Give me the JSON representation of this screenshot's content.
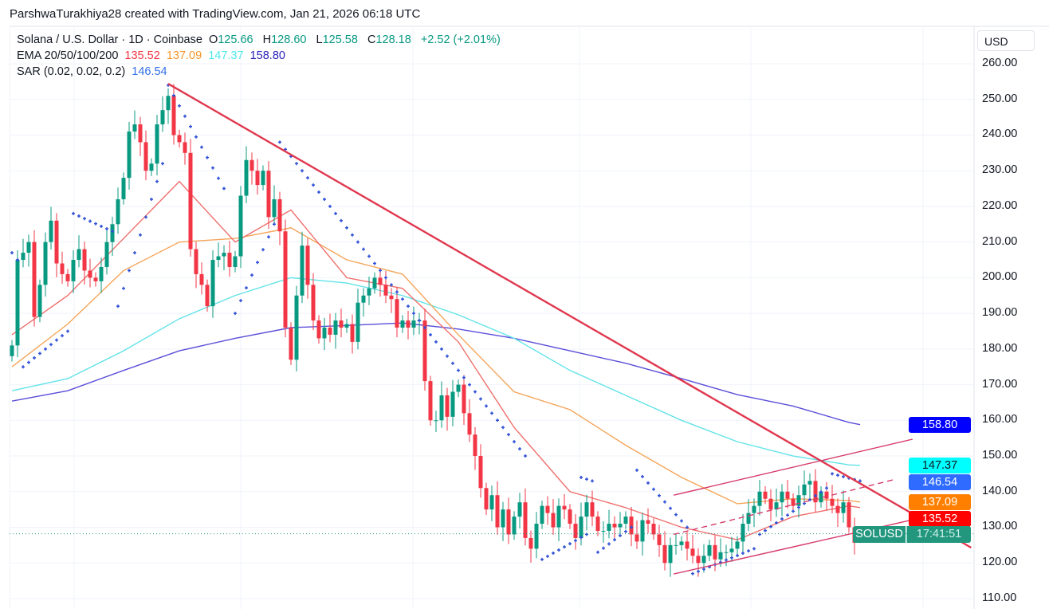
{
  "credit": "ParshwaTurakhiya28 created with TradingView.com, Jan 21, 2026 06:18 UTC",
  "legend": {
    "symbol": "Solana / U.S. Dollar · 1D · Coinbase",
    "o_label": "O",
    "o": "125.66",
    "h_label": "H",
    "h": "128.60",
    "l_label": "L",
    "l": "125.58",
    "c_label": "C",
    "c": "128.18",
    "change": "+2.52 (+2.01%)",
    "ema_label": "EMA 20/50/100/200",
    "ema20": "135.52",
    "ema50": "137.09",
    "ema100": "147.37",
    "ema200": "158.80",
    "sar_label": "SAR (0.02, 0.02, 0.2)",
    "sar": "146.54"
  },
  "price_axis": {
    "currency": "USD",
    "ticks": [
      "260.00",
      "250.00",
      "240.00",
      "230.00",
      "220.00",
      "210.00",
      "200.00",
      "190.00",
      "180.00",
      "170.00",
      "160.00",
      "150.00",
      "140.00",
      "130.00",
      "120.00",
      "110.00"
    ],
    "labels": [
      {
        "text": "158.80",
        "value": 158.8,
        "bg": "#0000ff",
        "fg": "#ffffff"
      },
      {
        "text": "147.37",
        "value": 147.37,
        "bg": "#00ffff",
        "fg": "#131722"
      },
      {
        "text": "146.54",
        "value": 146.54,
        "bg": "#2f6bff",
        "fg": "#ffffff"
      },
      {
        "text": "137.09",
        "value": 137.09,
        "bg": "#ff8000",
        "fg": "#ffffff"
      },
      {
        "text": "135.52",
        "value": 135.52,
        "bg": "#ff0000",
        "fg": "#ffffff"
      }
    ],
    "symbol_tag": "SOLUSD",
    "countdown": "17:41:51"
  },
  "colors": {
    "up": "#089981",
    "down": "#f23645",
    "ema20": "#ef6f6c",
    "ema50": "#f5a55a",
    "ema100": "#62e3e8",
    "ema200": "#5a4ed8",
    "sar": "#2f4fd6",
    "trendline": "#e0384f",
    "channel": "#d63a6a"
  },
  "chart_data": {
    "type": "candlestick",
    "ylim": [
      110,
      260
    ],
    "grid": true,
    "last": {
      "open": 125.66,
      "high": 128.6,
      "low": 125.58,
      "close": 128.18
    },
    "close": [
      181,
      205,
      207,
      210,
      189,
      198,
      210,
      216,
      204,
      201,
      199,
      205,
      208,
      202,
      200,
      199,
      203,
      210,
      215,
      222,
      228,
      241,
      243,
      238,
      230,
      232,
      243,
      247,
      251,
      240,
      238,
      235,
      208,
      201,
      198,
      192,
      205,
      206,
      207,
      203,
      206,
      223,
      233,
      230,
      226,
      230,
      217,
      222,
      213,
      186,
      177,
      195,
      209,
      198,
      188,
      183,
      186,
      184,
      188,
      186,
      187,
      182,
      193,
      195,
      197,
      200,
      198,
      195,
      194,
      186,
      188,
      186,
      188,
      188,
      171,
      160,
      160,
      167,
      161,
      168,
      170,
      162,
      156,
      150,
      141,
      135,
      139,
      130,
      135,
      128,
      133,
      137,
      127,
      124,
      131,
      136,
      134,
      130,
      136,
      135,
      131,
      127,
      133,
      137,
      133,
      129,
      129,
      131,
      130,
      131,
      133,
      128,
      126,
      132,
      131,
      128,
      125,
      120,
      125,
      125,
      126,
      124,
      122,
      120,
      122,
      125,
      121,
      123,
      123,
      124,
      126,
      131,
      134,
      136,
      140,
      138,
      135,
      137,
      140,
      138,
      136,
      139,
      142,
      143,
      137,
      140,
      138,
      136,
      134,
      137,
      130,
      125.66,
      128.18
    ],
    "ema": {
      "sample_every": 10,
      "ema20": [
        184,
        195,
        211,
        227,
        210,
        219,
        200,
        197,
        182,
        158,
        140,
        135.5,
        130,
        126.5,
        133,
        136,
        135.52
      ],
      "ema50": [
        175,
        187,
        202,
        210,
        211,
        214,
        205,
        201,
        184,
        168,
        163,
        153,
        144,
        136.6,
        138,
        137.5,
        137.09
      ],
      "ema100": [
        168.3,
        171.7,
        179.5,
        188.5,
        195,
        200,
        198.5,
        195,
        189.6,
        183,
        174,
        167,
        160,
        154,
        150,
        147.5,
        147.37
      ],
      "ema200": [
        165.4,
        168.3,
        174,
        179.5,
        183,
        186,
        186.6,
        187.3,
        185.6,
        183,
        179.5,
        176,
        171.7,
        167.2,
        164,
        159.4,
        158.8
      ]
    },
    "sar_segments": [
      [
        0,
        1,
        207,
        205
      ],
      [
        2,
        10,
        175,
        185
      ],
      [
        11,
        18,
        218,
        213
      ],
      [
        19,
        27,
        192,
        232
      ],
      [
        28,
        38,
        254,
        225
      ],
      [
        40,
        47,
        190,
        215
      ],
      [
        48,
        92,
        238,
        150
      ],
      [
        95,
        103,
        121,
        128
      ],
      [
        102,
        104,
        144,
        143
      ],
      [
        105,
        111,
        123,
        130
      ],
      [
        112,
        121,
        146,
        130
      ],
      [
        122,
        133,
        117,
        124
      ],
      [
        134,
        146,
        128,
        141
      ],
      [
        147,
        152,
        145,
        143
      ]
    ],
    "trendlines": [
      {
        "kind": "downtrend",
        "from": [
          28,
          254.4
        ],
        "to": [
          171.9,
          124.3
        ],
        "dashed": false
      },
      {
        "kind": "channel-upper",
        "from": [
          118.6,
          139
        ],
        "to": [
          161.4,
          154.7
        ],
        "dashed": false
      },
      {
        "kind": "channel-lower",
        "from": [
          118.6,
          116.9
        ],
        "to": [
          161.4,
          132.1
        ],
        "dashed": false
      },
      {
        "kind": "channel-mid",
        "from": [
          118.6,
          128
        ],
        "to": [
          157.9,
          143.3
        ],
        "dashed": true
      }
    ]
  }
}
